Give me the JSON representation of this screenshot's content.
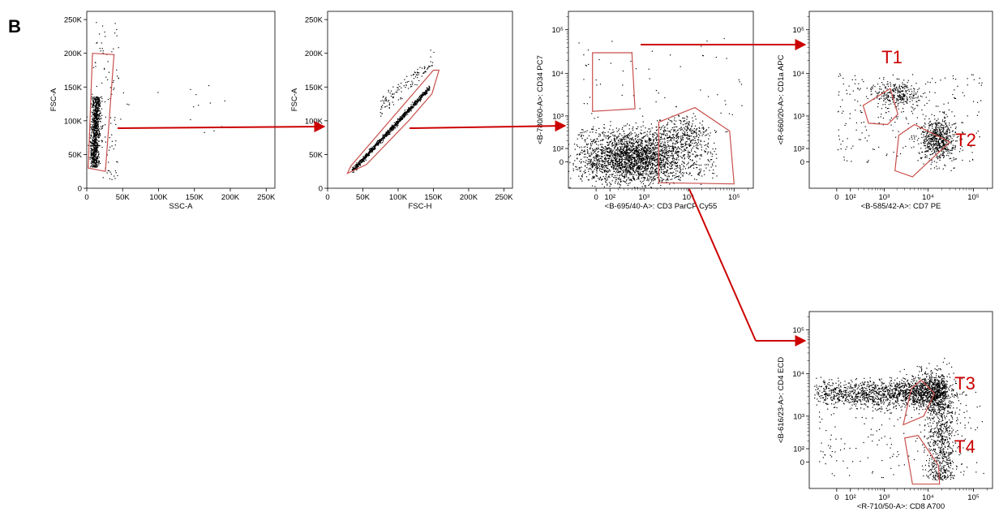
{
  "figure": {
    "panel_letter": "B",
    "arrow_color": "#cc0000",
    "gate_color": "#c8504b",
    "gate_label_color": "#cc0000",
    "dot_color": "#000000"
  },
  "chart_data": [
    {
      "id": "p1",
      "type": "scatter",
      "xlabel": "SSC-A",
      "ylabel": "FSC-A",
      "xscale": "linear",
      "yscale": "linear",
      "xlim": [
        0,
        262144
      ],
      "ylim": [
        0,
        262144
      ],
      "xticks": [
        0,
        50000,
        100000,
        150000,
        200000,
        250000
      ],
      "xtick_labels": [
        "0",
        "50K",
        "100K",
        "150K",
        "200K",
        "250K"
      ],
      "yticks": [
        0,
        50000,
        100000,
        150000,
        200000,
        250000
      ],
      "ytick_labels": [
        "0",
        "50K",
        "100K",
        "150K",
        "200K",
        "250K"
      ],
      "gates": [
        {
          "label": "",
          "points": [
            [
              2000,
              30000
            ],
            [
              8000,
              200000
            ],
            [
              38000,
              198000
            ],
            [
              26000,
              25000
            ]
          ]
        }
      ]
    },
    {
      "id": "p2",
      "type": "scatter",
      "xlabel": "FSC-H",
      "ylabel": "FSC-A",
      "xscale": "linear",
      "yscale": "linear",
      "xlim": [
        0,
        262144
      ],
      "ylim": [
        0,
        262144
      ],
      "xticks": [
        0,
        50000,
        100000,
        150000,
        200000,
        250000
      ],
      "xtick_labels": [
        "0",
        "50K",
        "100K",
        "150K",
        "200K",
        "250K"
      ],
      "yticks": [
        0,
        50000,
        100000,
        150000,
        200000,
        250000
      ],
      "ytick_labels": [
        "0",
        "50K",
        "100K",
        "150K",
        "200K",
        "250K"
      ],
      "gates": [
        {
          "label": "",
          "points": [
            [
              28000,
              22000
            ],
            [
              33000,
              33000
            ],
            [
              150000,
              175000
            ],
            [
              158000,
              175000
            ],
            [
              148000,
              140000
            ],
            [
              115000,
              100000
            ],
            [
              55000,
              35000
            ]
          ]
        }
      ]
    },
    {
      "id": "p3",
      "type": "scatter",
      "xlabel": "<B-695/40-A>: CD3 ParCP Cy55",
      "ylabel": "<B-780/60-A>: CD34 PC7",
      "xscale": "biexponential",
      "yscale": "biexponential",
      "xticks": [
        0,
        100,
        1000,
        10000,
        100000
      ],
      "xtick_labels": [
        "0",
        "10²",
        "10³",
        "10⁴",
        "10⁵"
      ],
      "yticks": [
        0,
        100,
        1000,
        10000,
        100000
      ],
      "ytick_labels": [
        "0",
        "10²",
        "10³",
        "10⁴",
        "10⁵"
      ],
      "gates": [
        {
          "label": "",
          "points": [
            [
              -20,
              30000
            ],
            [
              500,
              30000
            ],
            [
              600,
              1500
            ],
            [
              -20,
              1300
            ]
          ]
        },
        {
          "label": "",
          "points": [
            [
              2200,
              -200
            ],
            [
              2200,
              700
            ],
            [
              14000,
              1600
            ],
            [
              80000,
              400
            ],
            [
              100000,
              -220
            ]
          ]
        }
      ]
    },
    {
      "id": "p4",
      "type": "scatter",
      "xlabel": "<B-585/42-A>: CD7 PE",
      "ylabel": "<R-660/20-A>: CD1a APC",
      "xscale": "biexponential",
      "yscale": "biexponential",
      "xticks": [
        0,
        100,
        1000,
        10000,
        100000
      ],
      "xtick_labels": [
        "0",
        "10²",
        "10³",
        "10⁴",
        "10⁵"
      ],
      "yticks": [
        0,
        100,
        1000,
        10000,
        100000
      ],
      "ytick_labels": [
        "0",
        "10²",
        "10³",
        "10⁴",
        "10⁵"
      ],
      "gates": [
        {
          "label": "T1",
          "points": [
            [
              280,
              1800
            ],
            [
              1400,
              4500
            ],
            [
              2100,
              1100
            ],
            [
              1200,
              600
            ],
            [
              400,
              650
            ]
          ]
        },
        {
          "label": "T2",
          "points": [
            [
              2200,
              300
            ],
            [
              5000,
              600
            ],
            [
              30000,
              180
            ],
            [
              4500,
              -120
            ],
            [
              1800,
              -60
            ]
          ]
        }
      ]
    },
    {
      "id": "p5",
      "type": "scatter",
      "xlabel": "<R-710/50-A>: CD8 A700",
      "ylabel": "<B-616/23-A>: CD4 ECD",
      "xscale": "biexponential",
      "yscale": "biexponential",
      "xticks": [
        0,
        100,
        1000,
        10000,
        100000
      ],
      "xtick_labels": [
        "0",
        "10²",
        "10³",
        "10⁴",
        "10⁵"
      ],
      "yticks": [
        0,
        100,
        1000,
        10000,
        100000
      ],
      "ytick_labels": [
        "0",
        "10²",
        "10³",
        "10⁴",
        "10⁵"
      ],
      "gates": [
        {
          "label": "T3",
          "points": [
            [
              2800,
              600
            ],
            [
              4200,
              4500
            ],
            [
              7000,
              7200
            ],
            [
              14000,
              3500
            ],
            [
              8000,
              1000
            ]
          ]
        },
        {
          "label": "T4",
          "points": [
            [
              3000,
              250
            ],
            [
              6000,
              300
            ],
            [
              17000,
              -20
            ],
            [
              18000,
              -220
            ],
            [
              4500,
              -220
            ]
          ]
        }
      ]
    }
  ]
}
